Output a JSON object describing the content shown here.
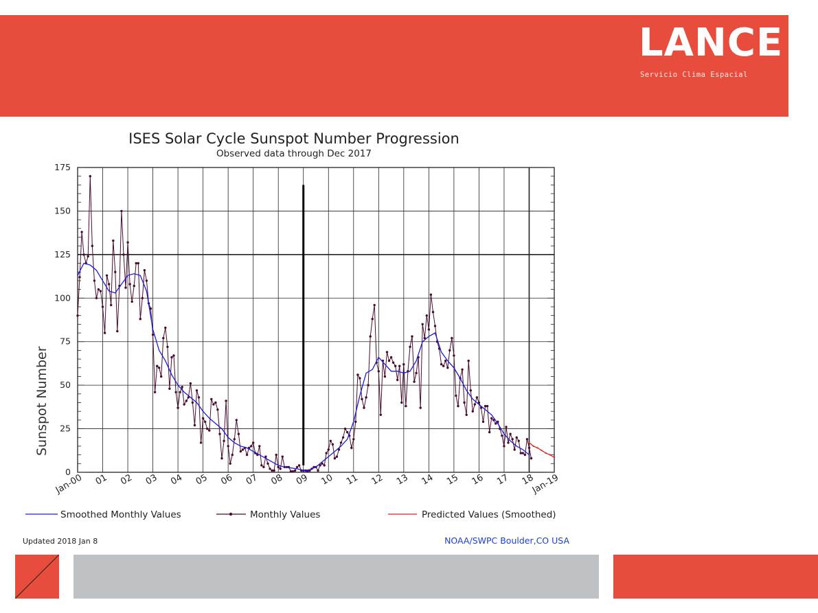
{
  "header": {
    "logo_text": "LANCE",
    "logo_subtitle": "Servicio Clima Espacial"
  },
  "colors": {
    "banner": "#e84c3d",
    "smoothed": "#1a1adb",
    "monthly": "#4a0a2e",
    "predicted": "#e0201a",
    "footer_gray": "#bfc2c4"
  },
  "chart_data": {
    "type": "line",
    "title": "ISES Solar Cycle Sunspot Number Progression",
    "subtitle": "Observed data through Dec 2017",
    "ylabel": "Sunspot Number",
    "ylim": [
      0,
      175
    ],
    "y_ticks": [
      0,
      25,
      50,
      75,
      100,
      125,
      150,
      175
    ],
    "xlim": [
      2000.0,
      2019.0
    ],
    "x_tick_labels": [
      "Jan-00",
      "01",
      "02",
      "03",
      "04",
      "05",
      "06",
      "07",
      "08",
      "09",
      "10",
      "11",
      "12",
      "13",
      "14",
      "15",
      "16",
      "17",
      "18",
      "Jan-19"
    ],
    "grid": true,
    "highlighted_gridline_y": 125,
    "marker_bar": {
      "x": 2009.0,
      "y_top": 165
    },
    "legend": {
      "smoothed": "Smoothed Monthly Values",
      "monthly": "Monthly Values",
      "predicted": "Predicted Values (Smoothed)"
    },
    "series": [
      {
        "name": "Smoothed Monthly Values",
        "points": [
          [
            2000.0,
            113
          ],
          [
            2000.25,
            120
          ],
          [
            2000.5,
            119
          ],
          [
            2000.75,
            116
          ],
          [
            2001.0,
            110
          ],
          [
            2001.25,
            104
          ],
          [
            2001.5,
            103
          ],
          [
            2001.75,
            108
          ],
          [
            2002.0,
            113
          ],
          [
            2002.25,
            114
          ],
          [
            2002.5,
            113
          ],
          [
            2002.75,
            104
          ],
          [
            2003.0,
            82
          ],
          [
            2003.25,
            70
          ],
          [
            2003.5,
            64
          ],
          [
            2003.75,
            56
          ],
          [
            2004.0,
            50
          ],
          [
            2004.25,
            46
          ],
          [
            2004.5,
            43
          ],
          [
            2004.75,
            40
          ],
          [
            2005.0,
            35
          ],
          [
            2005.25,
            31
          ],
          [
            2005.5,
            28
          ],
          [
            2005.75,
            25
          ],
          [
            2006.0,
            20
          ],
          [
            2006.25,
            17
          ],
          [
            2006.5,
            15
          ],
          [
            2006.75,
            14
          ],
          [
            2007.0,
            12
          ],
          [
            2007.25,
            10
          ],
          [
            2007.5,
            8
          ],
          [
            2007.75,
            6
          ],
          [
            2008.0,
            4
          ],
          [
            2008.25,
            3
          ],
          [
            2008.5,
            2.5
          ],
          [
            2008.75,
            2
          ],
          [
            2009.0,
            1
          ],
          [
            2009.25,
            1.5
          ],
          [
            2009.5,
            3
          ],
          [
            2009.75,
            6
          ],
          [
            2010.0,
            9
          ],
          [
            2010.25,
            12
          ],
          [
            2010.5,
            15
          ],
          [
            2010.75,
            19
          ],
          [
            2011.0,
            29
          ],
          [
            2011.25,
            44
          ],
          [
            2011.5,
            57
          ],
          [
            2011.75,
            59
          ],
          [
            2012.0,
            66
          ],
          [
            2012.25,
            62
          ],
          [
            2012.5,
            58
          ],
          [
            2012.75,
            58
          ],
          [
            2013.0,
            57
          ],
          [
            2013.25,
            58
          ],
          [
            2013.5,
            64
          ],
          [
            2013.75,
            75
          ],
          [
            2014.0,
            78
          ],
          [
            2014.25,
            80
          ],
          [
            2014.5,
            69
          ],
          [
            2014.75,
            64
          ],
          [
            2015.0,
            60
          ],
          [
            2015.25,
            54
          ],
          [
            2015.5,
            47
          ],
          [
            2015.75,
            42
          ],
          [
            2016.0,
            39
          ],
          [
            2016.25,
            36
          ],
          [
            2016.5,
            33
          ],
          [
            2016.75,
            28
          ],
          [
            2017.0,
            22
          ],
          [
            2017.25,
            18
          ],
          [
            2017.5,
            15
          ],
          [
            2017.75,
            13
          ],
          [
            2018.0,
            10
          ]
        ]
      },
      {
        "name": "Monthly Values",
        "points": [
          [
            2000.0,
            90
          ],
          [
            2000.083,
            112
          ],
          [
            2000.167,
            138
          ],
          [
            2000.25,
            125
          ],
          [
            2000.333,
            120
          ],
          [
            2000.417,
            124
          ],
          [
            2000.5,
            170
          ],
          [
            2000.583,
            130
          ],
          [
            2000.667,
            110
          ],
          [
            2000.75,
            100
          ],
          [
            2000.833,
            105
          ],
          [
            2000.917,
            104
          ],
          [
            2001.0,
            95
          ],
          [
            2001.083,
            80
          ],
          [
            2001.167,
            113
          ],
          [
            2001.25,
            108
          ],
          [
            2001.333,
            96
          ],
          [
            2001.417,
            133
          ],
          [
            2001.5,
            115
          ],
          [
            2001.583,
            81
          ],
          [
            2001.667,
            107
          ],
          [
            2001.75,
            150
          ],
          [
            2001.833,
            125
          ],
          [
            2001.917,
            106
          ],
          [
            2002.0,
            132
          ],
          [
            2002.083,
            108
          ],
          [
            2002.167,
            98
          ],
          [
            2002.25,
            107
          ],
          [
            2002.333,
            120
          ],
          [
            2002.417,
            120
          ],
          [
            2002.5,
            88
          ],
          [
            2002.583,
            100
          ],
          [
            2002.667,
            116
          ],
          [
            2002.75,
            110
          ],
          [
            2002.833,
            97
          ],
          [
            2002.917,
            94
          ],
          [
            2003.0,
            79
          ],
          [
            2003.083,
            46
          ],
          [
            2003.167,
            61
          ],
          [
            2003.25,
            60
          ],
          [
            2003.333,
            55
          ],
          [
            2003.417,
            77
          ],
          [
            2003.5,
            83
          ],
          [
            2003.583,
            72
          ],
          [
            2003.667,
            48
          ],
          [
            2003.75,
            66
          ],
          [
            2003.833,
            67
          ],
          [
            2003.917,
            46
          ],
          [
            2004.0,
            37
          ],
          [
            2004.083,
            46
          ],
          [
            2004.167,
            49
          ],
          [
            2004.25,
            39
          ],
          [
            2004.333,
            41
          ],
          [
            2004.417,
            43
          ],
          [
            2004.5,
            51
          ],
          [
            2004.583,
            40
          ],
          [
            2004.667,
            27
          ],
          [
            2004.75,
            47
          ],
          [
            2004.833,
            43
          ],
          [
            2004.917,
            17
          ],
          [
            2005.0,
            31
          ],
          [
            2005.083,
            29
          ],
          [
            2005.167,
            25
          ],
          [
            2005.25,
            24
          ],
          [
            2005.333,
            42
          ],
          [
            2005.417,
            39
          ],
          [
            2005.5,
            40
          ],
          [
            2005.583,
            36
          ],
          [
            2005.667,
            22
          ],
          [
            2005.75,
            8
          ],
          [
            2005.833,
            18
          ],
          [
            2005.917,
            41
          ],
          [
            2006.0,
            15
          ],
          [
            2006.083,
            5
          ],
          [
            2006.167,
            10
          ],
          [
            2006.25,
            19
          ],
          [
            2006.333,
            30
          ],
          [
            2006.417,
            22
          ],
          [
            2006.5,
            12
          ],
          [
            2006.583,
            13
          ],
          [
            2006.667,
            14
          ],
          [
            2006.75,
            10
          ],
          [
            2006.833,
            14
          ],
          [
            2006.917,
            15
          ],
          [
            2007.0,
            17
          ],
          [
            2007.083,
            11
          ],
          [
            2007.167,
            10
          ],
          [
            2007.25,
            15
          ],
          [
            2007.333,
            4
          ],
          [
            2007.417,
            3
          ],
          [
            2007.5,
            9
          ],
          [
            2007.583,
            5
          ],
          [
            2007.667,
            2
          ],
          [
            2007.75,
            1
          ],
          [
            2007.833,
            1
          ],
          [
            2007.917,
            10
          ],
          [
            2008.0,
            3
          ],
          [
            2008.083,
            2
          ],
          [
            2008.167,
            9
          ],
          [
            2008.25,
            3
          ],
          [
            2008.333,
            3
          ],
          [
            2008.417,
            3
          ],
          [
            2008.5,
            0.5
          ],
          [
            2008.583,
            0.5
          ],
          [
            2008.667,
            1
          ],
          [
            2008.75,
            3
          ],
          [
            2008.833,
            4
          ],
          [
            2008.917,
            1
          ],
          [
            2009.0,
            1
          ],
          [
            2009.083,
            1
          ],
          [
            2009.167,
            0.5
          ],
          [
            2009.25,
            1
          ],
          [
            2009.333,
            2
          ],
          [
            2009.417,
            3
          ],
          [
            2009.5,
            3
          ],
          [
            2009.583,
            1
          ],
          [
            2009.667,
            4
          ],
          [
            2009.75,
            5
          ],
          [
            2009.833,
            4
          ],
          [
            2009.917,
            11
          ],
          [
            2010.0,
            13
          ],
          [
            2010.083,
            18
          ],
          [
            2010.167,
            16
          ],
          [
            2010.25,
            8
          ],
          [
            2010.333,
            9
          ],
          [
            2010.417,
            13
          ],
          [
            2010.5,
            17
          ],
          [
            2010.583,
            20
          ],
          [
            2010.667,
            25
          ],
          [
            2010.75,
            23
          ],
          [
            2010.833,
            21
          ],
          [
            2010.917,
            14
          ],
          [
            2011.0,
            19
          ],
          [
            2011.083,
            29
          ],
          [
            2011.167,
            56
          ],
          [
            2011.25,
            54
          ],
          [
            2011.333,
            42
          ],
          [
            2011.417,
            37
          ],
          [
            2011.5,
            43
          ],
          [
            2011.583,
            50
          ],
          [
            2011.667,
            78
          ],
          [
            2011.75,
            88
          ],
          [
            2011.833,
            96
          ],
          [
            2011.917,
            63
          ],
          [
            2012.0,
            58
          ],
          [
            2012.083,
            33
          ],
          [
            2012.167,
            64
          ],
          [
            2012.25,
            55
          ],
          [
            2012.333,
            69
          ],
          [
            2012.417,
            64
          ],
          [
            2012.5,
            66
          ],
          [
            2012.583,
            63
          ],
          [
            2012.667,
            61
          ],
          [
            2012.75,
            53
          ],
          [
            2012.833,
            61
          ],
          [
            2012.917,
            40
          ],
          [
            2013.0,
            62
          ],
          [
            2013.083,
            38
          ],
          [
            2013.167,
            58
          ],
          [
            2013.25,
            72
          ],
          [
            2013.333,
            78
          ],
          [
            2013.417,
            52
          ],
          [
            2013.5,
            57
          ],
          [
            2013.583,
            66
          ],
          [
            2013.667,
            37
          ],
          [
            2013.75,
            85
          ],
          [
            2013.833,
            77
          ],
          [
            2013.917,
            90
          ],
          [
            2014.0,
            82
          ],
          [
            2014.083,
            102
          ],
          [
            2014.167,
            92
          ],
          [
            2014.25,
            84
          ],
          [
            2014.333,
            75
          ],
          [
            2014.417,
            71
          ],
          [
            2014.5,
            62
          ],
          [
            2014.583,
            61
          ],
          [
            2014.667,
            64
          ],
          [
            2014.75,
            60
          ],
          [
            2014.833,
            70
          ],
          [
            2014.917,
            77
          ],
          [
            2015.0,
            67
          ],
          [
            2015.083,
            44
          ],
          [
            2015.167,
            38
          ],
          [
            2015.25,
            54
          ],
          [
            2015.333,
            59
          ],
          [
            2015.417,
            40
          ],
          [
            2015.5,
            33
          ],
          [
            2015.583,
            64
          ],
          [
            2015.667,
            47
          ],
          [
            2015.75,
            35
          ],
          [
            2015.833,
            39
          ],
          [
            2015.917,
            43
          ],
          [
            2016.0,
            40
          ],
          [
            2016.083,
            37
          ],
          [
            2016.167,
            29
          ],
          [
            2016.25,
            38
          ],
          [
            2016.333,
            38
          ],
          [
            2016.417,
            23
          ],
          [
            2016.5,
            31
          ],
          [
            2016.583,
            30
          ],
          [
            2016.667,
            28
          ],
          [
            2016.75,
            29
          ],
          [
            2016.833,
            25
          ],
          [
            2016.917,
            21
          ],
          [
            2017.0,
            15
          ],
          [
            2017.083,
            26
          ],
          [
            2017.167,
            17
          ],
          [
            2017.25,
            22
          ],
          [
            2017.333,
            19
          ],
          [
            2017.417,
            13
          ],
          [
            2017.5,
            20
          ],
          [
            2017.583,
            18
          ],
          [
            2017.667,
            11
          ],
          [
            2017.75,
            11
          ],
          [
            2017.833,
            10
          ],
          [
            2017.917,
            19
          ],
          [
            2018.0,
            14
          ],
          [
            2018.083,
            8
          ]
        ]
      },
      {
        "name": "Predicted Values (Smoothed)",
        "points": [
          [
            2018.0,
            17
          ],
          [
            2018.167,
            15
          ],
          [
            2018.333,
            14
          ],
          [
            2018.5,
            12.5
          ],
          [
            2018.667,
            11
          ],
          [
            2018.833,
            10
          ],
          [
            2019.0,
            8.5
          ]
        ]
      }
    ]
  },
  "footnotes": {
    "updated": "Updated 2018 Jan  8",
    "source": "NOAA/SWPC Boulder,CO USA"
  }
}
